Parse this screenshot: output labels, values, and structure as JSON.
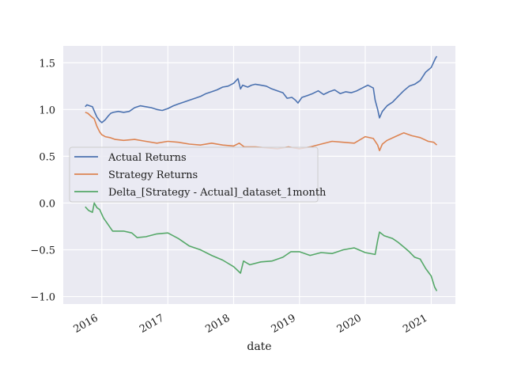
{
  "chart_data": {
    "type": "line",
    "title": "",
    "xlabel": "date",
    "ylabel": "",
    "xlim": [
      "2015-06-01",
      "2021-05-15"
    ],
    "ylim": [
      -1.08,
      1.68
    ],
    "grid": true,
    "legend_position": "center-left",
    "x_ticks": [
      {
        "value": "2016-01-01",
        "label": "2016"
      },
      {
        "value": "2017-01-01",
        "label": "2017"
      },
      {
        "value": "2018-01-01",
        "label": "2018"
      },
      {
        "value": "2019-01-01",
        "label": "2019"
      },
      {
        "value": "2020-01-01",
        "label": "2020"
      },
      {
        "value": "2021-01-01",
        "label": "2021"
      }
    ],
    "y_ticks": [
      {
        "value": 1.5,
        "label": "1.5"
      },
      {
        "value": 1.0,
        "label": "1.0"
      },
      {
        "value": 0.5,
        "label": "0.5"
      },
      {
        "value": 0.0,
        "label": "0.0"
      },
      {
        "value": -0.5,
        "label": "−0.5"
      },
      {
        "value": -1.0,
        "label": "−1.0"
      }
    ],
    "series": [
      {
        "name": "Actual Returns",
        "color": "#4c72b0",
        "points": [
          [
            "2015-10-01",
            1.03
          ],
          [
            "2015-10-10",
            1.05
          ],
          [
            "2015-10-25",
            1.04
          ],
          [
            "2015-11-10",
            1.03
          ],
          [
            "2015-11-25",
            0.96
          ],
          [
            "2015-12-05",
            0.92
          ],
          [
            "2015-12-20",
            0.88
          ],
          [
            "2016-01-01",
            0.86
          ],
          [
            "2016-01-20",
            0.89
          ],
          [
            "2016-02-05",
            0.93
          ],
          [
            "2016-02-20",
            0.96
          ],
          [
            "2016-03-05",
            0.97
          ],
          [
            "2016-04-01",
            0.98
          ],
          [
            "2016-05-01",
            0.97
          ],
          [
            "2016-06-01",
            0.98
          ],
          [
            "2016-07-01",
            1.02
          ],
          [
            "2016-08-01",
            1.04
          ],
          [
            "2016-09-01",
            1.03
          ],
          [
            "2016-10-01",
            1.02
          ],
          [
            "2016-11-01",
            1.0
          ],
          [
            "2016-12-01",
            0.99
          ],
          [
            "2017-01-01",
            1.01
          ],
          [
            "2017-02-01",
            1.04
          ],
          [
            "2017-03-01",
            1.06
          ],
          [
            "2017-04-01",
            1.08
          ],
          [
            "2017-05-01",
            1.1
          ],
          [
            "2017-06-01",
            1.12
          ],
          [
            "2017-07-01",
            1.14
          ],
          [
            "2017-08-01",
            1.17
          ],
          [
            "2017-09-01",
            1.19
          ],
          [
            "2017-10-01",
            1.21
          ],
          [
            "2017-11-01",
            1.24
          ],
          [
            "2017-12-01",
            1.25
          ],
          [
            "2018-01-01",
            1.28
          ],
          [
            "2018-01-25",
            1.33
          ],
          [
            "2018-02-08",
            1.22
          ],
          [
            "2018-02-20",
            1.26
          ],
          [
            "2018-03-20",
            1.24
          ],
          [
            "2018-04-10",
            1.26
          ],
          [
            "2018-05-01",
            1.27
          ],
          [
            "2018-06-01",
            1.26
          ],
          [
            "2018-07-01",
            1.25
          ],
          [
            "2018-08-01",
            1.22
          ],
          [
            "2018-09-01",
            1.2
          ],
          [
            "2018-10-01",
            1.18
          ],
          [
            "2018-10-25",
            1.12
          ],
          [
            "2018-11-20",
            1.13
          ],
          [
            "2018-12-10",
            1.1
          ],
          [
            "2018-12-24",
            1.07
          ],
          [
            "2019-01-15",
            1.13
          ],
          [
            "2019-02-15",
            1.15
          ],
          [
            "2019-03-15",
            1.17
          ],
          [
            "2019-04-15",
            1.2
          ],
          [
            "2019-05-15",
            1.16
          ],
          [
            "2019-06-15",
            1.19
          ],
          [
            "2019-07-15",
            1.21
          ],
          [
            "2019-08-15",
            1.17
          ],
          [
            "2019-09-15",
            1.19
          ],
          [
            "2019-10-15",
            1.18
          ],
          [
            "2019-11-15",
            1.2
          ],
          [
            "2019-12-15",
            1.23
          ],
          [
            "2020-01-15",
            1.26
          ],
          [
            "2020-02-15",
            1.23
          ],
          [
            "2020-02-25",
            1.1
          ],
          [
            "2020-03-10",
            1.0
          ],
          [
            "2020-03-20",
            0.91
          ],
          [
            "2020-04-05",
            0.98
          ],
          [
            "2020-05-01",
            1.04
          ],
          [
            "2020-06-01",
            1.08
          ],
          [
            "2020-07-01",
            1.14
          ],
          [
            "2020-08-01",
            1.2
          ],
          [
            "2020-09-01",
            1.25
          ],
          [
            "2020-10-01",
            1.27
          ],
          [
            "2020-11-01",
            1.31
          ],
          [
            "2020-12-01",
            1.4
          ],
          [
            "2021-01-01",
            1.45
          ],
          [
            "2021-01-25",
            1.55
          ],
          [
            "2021-02-01",
            1.57
          ]
        ]
      },
      {
        "name": "Strategy Returns",
        "color": "#dd8452",
        "points": [
          [
            "2015-10-01",
            0.97
          ],
          [
            "2015-10-15",
            0.96
          ],
          [
            "2015-11-01",
            0.93
          ],
          [
            "2015-11-20",
            0.9
          ],
          [
            "2015-12-05",
            0.82
          ],
          [
            "2015-12-20",
            0.76
          ],
          [
            "2016-01-01",
            0.73
          ],
          [
            "2016-01-20",
            0.71
          ],
          [
            "2016-02-15",
            0.7
          ],
          [
            "2016-03-15",
            0.68
          ],
          [
            "2016-05-01",
            0.67
          ],
          [
            "2016-07-01",
            0.68
          ],
          [
            "2016-09-01",
            0.66
          ],
          [
            "2016-11-01",
            0.64
          ],
          [
            "2017-01-01",
            0.66
          ],
          [
            "2017-03-01",
            0.65
          ],
          [
            "2017-05-01",
            0.63
          ],
          [
            "2017-07-01",
            0.62
          ],
          [
            "2017-09-01",
            0.64
          ],
          [
            "2017-11-01",
            0.62
          ],
          [
            "2018-01-01",
            0.61
          ],
          [
            "2018-02-01",
            0.64
          ],
          [
            "2018-03-01",
            0.6
          ],
          [
            "2018-05-01",
            0.6
          ],
          [
            "2018-07-01",
            0.59
          ],
          [
            "2018-09-01",
            0.58
          ],
          [
            "2018-11-01",
            0.6
          ],
          [
            "2019-01-01",
            0.58
          ],
          [
            "2019-03-01",
            0.6
          ],
          [
            "2019-05-01",
            0.63
          ],
          [
            "2019-07-01",
            0.66
          ],
          [
            "2019-09-01",
            0.65
          ],
          [
            "2019-11-01",
            0.64
          ],
          [
            "2020-01-01",
            0.71
          ],
          [
            "2020-02-15",
            0.69
          ],
          [
            "2020-03-10",
            0.62
          ],
          [
            "2020-03-20",
            0.56
          ],
          [
            "2020-04-05",
            0.63
          ],
          [
            "2020-05-01",
            0.67
          ],
          [
            "2020-06-15",
            0.71
          ],
          [
            "2020-08-01",
            0.75
          ],
          [
            "2020-09-15",
            0.72
          ],
          [
            "2020-11-01",
            0.7
          ],
          [
            "2020-12-15",
            0.66
          ],
          [
            "2021-01-15",
            0.65
          ],
          [
            "2021-02-01",
            0.62
          ]
        ]
      },
      {
        "name": "Delta_[Strategy - Actual]_dataset_1month",
        "color": "#55a868",
        "points": [
          [
            "2015-10-01",
            -0.04
          ],
          [
            "2015-10-20",
            -0.08
          ],
          [
            "2015-11-10",
            -0.1
          ],
          [
            "2015-11-20",
            0.0
          ],
          [
            "2015-12-05",
            -0.05
          ],
          [
            "2015-12-20",
            -0.07
          ],
          [
            "2016-01-10",
            -0.16
          ],
          [
            "2016-02-01",
            -0.22
          ],
          [
            "2016-03-01",
            -0.3
          ],
          [
            "2016-05-01",
            -0.3
          ],
          [
            "2016-06-15",
            -0.32
          ],
          [
            "2016-07-15",
            -0.37
          ],
          [
            "2016-09-01",
            -0.36
          ],
          [
            "2016-11-01",
            -0.33
          ],
          [
            "2017-01-01",
            -0.32
          ],
          [
            "2017-03-01",
            -0.38
          ],
          [
            "2017-05-01",
            -0.46
          ],
          [
            "2017-07-01",
            -0.5
          ],
          [
            "2017-09-01",
            -0.56
          ],
          [
            "2017-11-01",
            -0.61
          ],
          [
            "2018-01-01",
            -0.68
          ],
          [
            "2018-02-08",
            -0.75
          ],
          [
            "2018-02-25",
            -0.62
          ],
          [
            "2018-04-01",
            -0.66
          ],
          [
            "2018-06-01",
            -0.63
          ],
          [
            "2018-08-01",
            -0.62
          ],
          [
            "2018-10-01",
            -0.58
          ],
          [
            "2018-11-15",
            -0.52
          ],
          [
            "2019-01-01",
            -0.52
          ],
          [
            "2019-03-01",
            -0.56
          ],
          [
            "2019-05-01",
            -0.53
          ],
          [
            "2019-07-01",
            -0.54
          ],
          [
            "2019-09-01",
            -0.5
          ],
          [
            "2019-11-01",
            -0.48
          ],
          [
            "2020-01-01",
            -0.53
          ],
          [
            "2020-02-25",
            -0.55
          ],
          [
            "2020-03-10",
            -0.4
          ],
          [
            "2020-03-20",
            -0.31
          ],
          [
            "2020-04-15",
            -0.35
          ],
          [
            "2020-06-01",
            -0.38
          ],
          [
            "2020-07-01",
            -0.42
          ],
          [
            "2020-08-01",
            -0.47
          ],
          [
            "2020-09-01",
            -0.52
          ],
          [
            "2020-10-01",
            -0.58
          ],
          [
            "2020-11-01",
            -0.6
          ],
          [
            "2020-12-01",
            -0.7
          ],
          [
            "2021-01-01",
            -0.78
          ],
          [
            "2021-01-20",
            -0.9
          ],
          [
            "2021-02-01",
            -0.94
          ]
        ]
      }
    ]
  }
}
